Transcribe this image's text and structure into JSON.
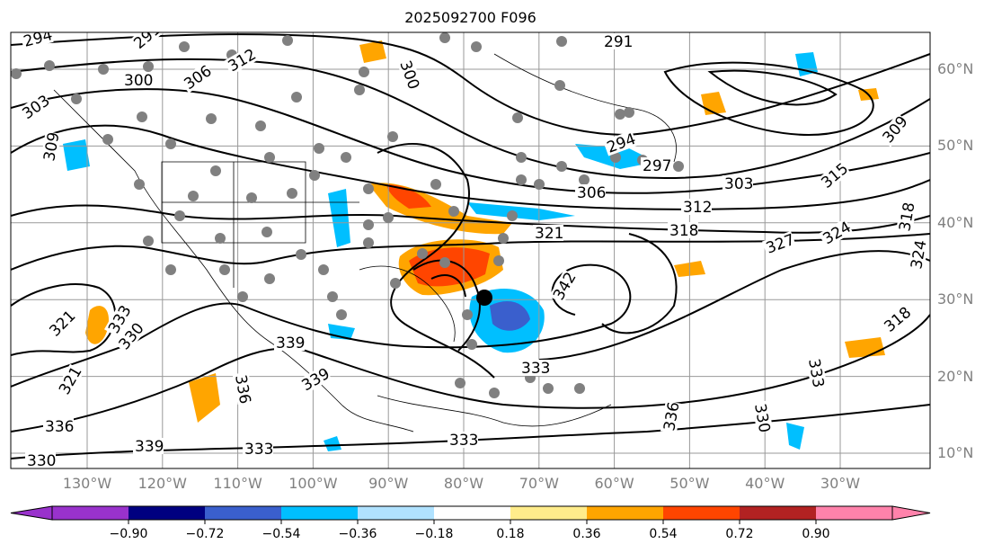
{
  "title": "2025092700 F096",
  "lat_labels": [
    "60°N",
    "50°N",
    "40°N",
    "30°N",
    "20°N",
    "10°N"
  ],
  "lon_labels": [
    "130°W",
    "120°W",
    "110°W",
    "100°W",
    "90°W",
    "80°W",
    "70°W",
    "60°W",
    "50°W",
    "40°W",
    "30°W"
  ],
  "colorbar": {
    "ticks": [
      "−0.90",
      "−0.72",
      "−0.54",
      "−0.36",
      "−0.18",
      "0.18",
      "0.36",
      "0.54",
      "0.72",
      "0.90"
    ],
    "colors": [
      "#9932cc",
      "#000080",
      "#3a5fcd",
      "#00bfff",
      "#b0e2ff",
      "#ffffff",
      "#ffec8b",
      "#ffa500",
      "#ff4500",
      "#b22222",
      "#ff82ab"
    ]
  },
  "contour_labels": [
    "294",
    "291",
    "300",
    "306",
    "312",
    "303",
    "309",
    "300",
    "291",
    "294",
    "297",
    "306",
    "303",
    "312",
    "315",
    "309",
    "321",
    "318",
    "327",
    "324",
    "318",
    "324",
    "321",
    "330",
    "333",
    "342",
    "339",
    "336",
    "333",
    "330",
    "321",
    "336",
    "339",
    "333",
    "336",
    "333",
    "318",
    "333",
    "330",
    "339"
  ],
  "marker_color": "#000000",
  "station_color": "#808080"
}
